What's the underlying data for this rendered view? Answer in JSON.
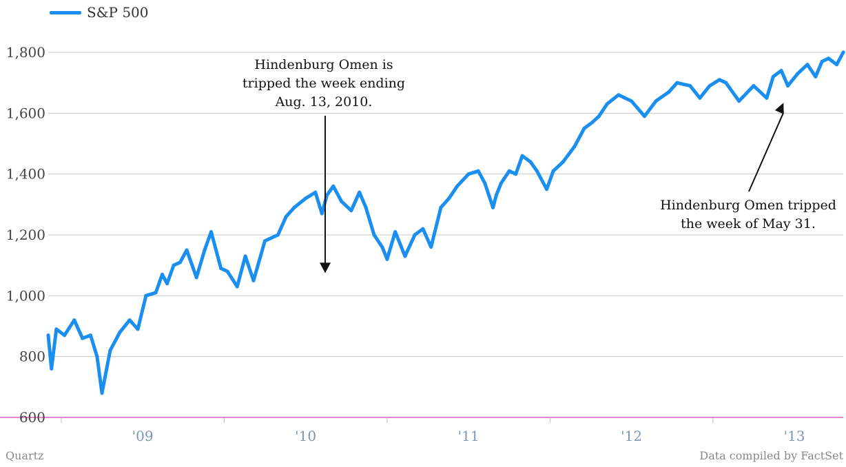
{
  "legend": {
    "label": "S&P 500",
    "color": "#1a8ff0"
  },
  "footer": {
    "source_left": "Quartz",
    "source_right": "Data compiled by FactSet"
  },
  "chart_data": {
    "type": "line",
    "title": "",
    "xlabel": "",
    "ylabel": "",
    "x_range": [
      2008.42,
      2013.3
    ],
    "ylim": [
      600,
      1800
    ],
    "y_ticks": [
      600,
      800,
      1000,
      1200,
      1400,
      1600,
      1800
    ],
    "y_tick_labels": [
      "600",
      "800",
      "1,000",
      "1,200",
      "1,400",
      "1,600",
      "1,800"
    ],
    "x_tick_labels": [
      "'09",
      "'10",
      "'11",
      "'12",
      "'13"
    ],
    "x_tick_label_positions": [
      2009.0,
      2010.0,
      2011.0,
      2012.0,
      2013.0
    ],
    "grid": true,
    "legend_position": "top-left",
    "series": [
      {
        "name": "S&P 500",
        "color": "#1a8ff0",
        "x": [
          2008.42,
          2008.44,
          2008.47,
          2008.52,
          2008.58,
          2008.63,
          2008.68,
          2008.72,
          2008.75,
          2008.8,
          2008.86,
          2008.92,
          2008.97,
          2009.02,
          2009.08,
          2009.12,
          2009.15,
          2009.19,
          2009.23,
          2009.27,
          2009.33,
          2009.38,
          2009.42,
          2009.48,
          2009.52,
          2009.58,
          2009.63,
          2009.68,
          2009.75,
          2009.83,
          2009.88,
          2009.93,
          2010.0,
          2010.06,
          2010.1,
          2010.13,
          2010.17,
          2010.22,
          2010.28,
          2010.33,
          2010.37,
          2010.42,
          2010.47,
          2010.5,
          2010.55,
          2010.61,
          2010.67,
          2010.72,
          2010.77,
          2010.83,
          2010.88,
          2010.93,
          2011.0,
          2011.06,
          2011.1,
          2011.15,
          2011.17,
          2011.2,
          2011.25,
          2011.29,
          2011.33,
          2011.38,
          2011.42,
          2011.48,
          2011.52,
          2011.58,
          2011.65,
          2011.71,
          2011.76,
          2011.8,
          2011.85,
          2011.92,
          2012.0,
          2012.08,
          2012.15,
          2012.23,
          2012.28,
          2012.36,
          2012.42,
          2012.48,
          2012.54,
          2012.58,
          2012.66,
          2012.75,
          2012.83,
          2012.87,
          2012.92,
          2012.96,
          2013.02,
          2013.08,
          2013.13,
          2013.17,
          2013.21,
          2013.26,
          2013.3
        ],
        "values": [
          870,
          760,
          890,
          870,
          920,
          860,
          870,
          800,
          680,
          820,
          880,
          920,
          890,
          1000,
          1010,
          1070,
          1040,
          1100,
          1110,
          1150,
          1060,
          1150,
          1210,
          1090,
          1080,
          1030,
          1130,
          1050,
          1180,
          1200,
          1260,
          1290,
          1320,
          1340,
          1270,
          1330,
          1360,
          1310,
          1280,
          1340,
          1290,
          1200,
          1160,
          1120,
          1210,
          1130,
          1200,
          1220,
          1160,
          1290,
          1320,
          1360,
          1400,
          1410,
          1370,
          1290,
          1330,
          1370,
          1410,
          1400,
          1460,
          1440,
          1410,
          1350,
          1410,
          1440,
          1490,
          1550,
          1570,
          1590,
          1630,
          1660,
          1640,
          1590,
          1640,
          1670,
          1700,
          1690,
          1650,
          1690,
          1710,
          1700,
          1640,
          1690,
          1650,
          1720,
          1740,
          1690,
          1730,
          1760,
          1720,
          1770,
          1780,
          1760,
          1800
        ]
      }
    ],
    "annotations": [
      {
        "lines": [
          "Hindenburg Omen is",
          "tripped the week ending",
          "Aug. 13, 2010."
        ],
        "x": 2010.12,
        "y": 1070
      },
      {
        "lines": [
          "Hindenburg Omen tripped",
          "the week of May 31."
        ],
        "x": 2012.93,
        "y": 1630
      }
    ]
  }
}
